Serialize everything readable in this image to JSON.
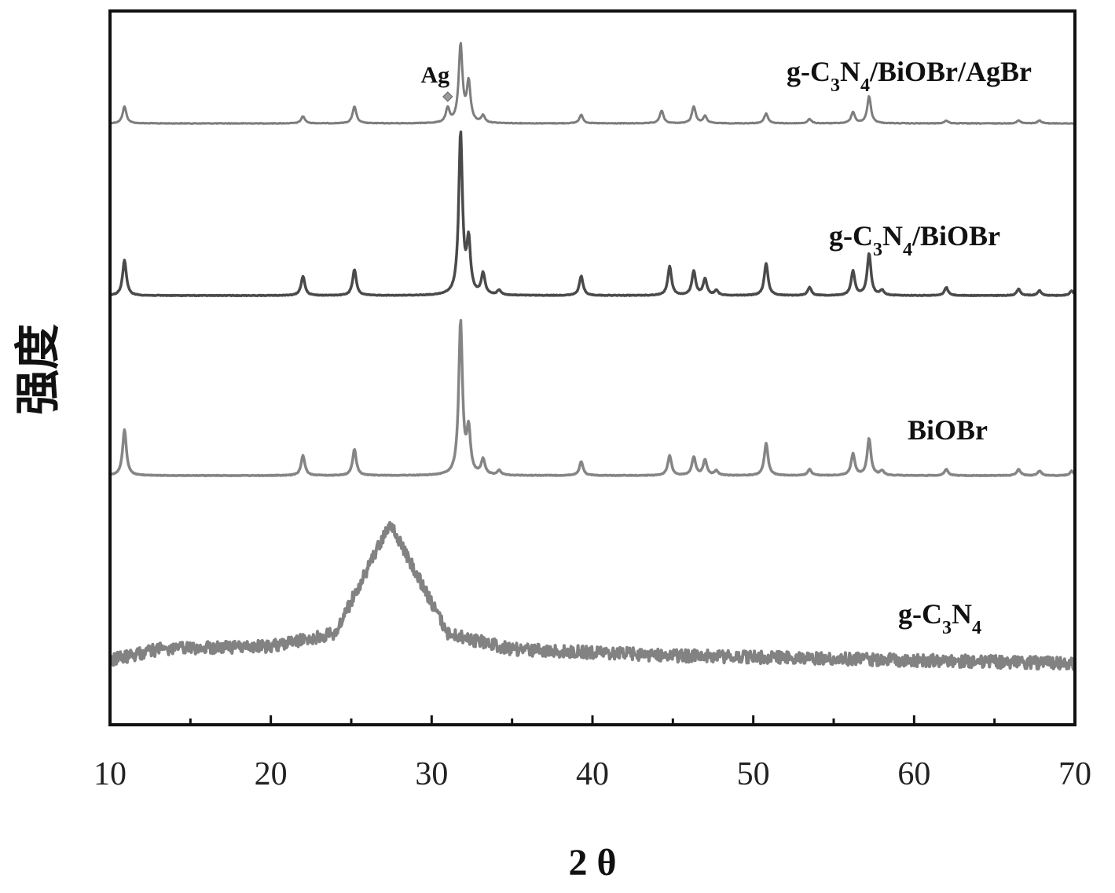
{
  "chart_data": {
    "type": "line",
    "title": "",
    "xlabel": "2 θ",
    "ylabel": "强度",
    "xlim": [
      10,
      70
    ],
    "x_ticks": [
      10,
      20,
      30,
      40,
      50,
      60,
      70
    ],
    "y_ticks": [],
    "grid": false,
    "legend": "none",
    "series": [
      {
        "name": "g-C₃N₄/BiOBr/AgBr",
        "label_parts": [
          "g-C",
          "3",
          "N",
          "4",
          "/BiOBr/AgBr"
        ],
        "color": "#7d7d7d",
        "peaks": [
          {
            "x": 10.9,
            "h": 0.12
          },
          {
            "x": 22.0,
            "h": 0.05
          },
          {
            "x": 25.2,
            "h": 0.12
          },
          {
            "x": 31.0,
            "h": 0.1
          },
          {
            "x": 31.8,
            "h": 0.55
          },
          {
            "x": 32.3,
            "h": 0.28
          },
          {
            "x": 33.2,
            "h": 0.05
          },
          {
            "x": 39.3,
            "h": 0.06
          },
          {
            "x": 44.3,
            "h": 0.09
          },
          {
            "x": 46.3,
            "h": 0.12
          },
          {
            "x": 47.0,
            "h": 0.05
          },
          {
            "x": 50.8,
            "h": 0.07
          },
          {
            "x": 53.5,
            "h": 0.03
          },
          {
            "x": 56.2,
            "h": 0.08
          },
          {
            "x": 57.2,
            "h": 0.19
          },
          {
            "x": 62.0,
            "h": 0.02
          },
          {
            "x": 66.5,
            "h": 0.02
          },
          {
            "x": 67.8,
            "h": 0.02
          }
        ]
      },
      {
        "name": "g-C₃N₄/BiOBr",
        "label_parts": [
          "g-C",
          "3",
          "N",
          "4",
          "/BiOBr"
        ],
        "color": "#4a4a4a",
        "peaks": [
          {
            "x": 10.9,
            "h": 0.22
          },
          {
            "x": 22.0,
            "h": 0.12
          },
          {
            "x": 25.2,
            "h": 0.16
          },
          {
            "x": 31.8,
            "h": 1.0
          },
          {
            "x": 32.3,
            "h": 0.32
          },
          {
            "x": 33.2,
            "h": 0.13
          },
          {
            "x": 34.2,
            "h": 0.03
          },
          {
            "x": 39.3,
            "h": 0.12
          },
          {
            "x": 44.8,
            "h": 0.18
          },
          {
            "x": 46.3,
            "h": 0.15
          },
          {
            "x": 47.0,
            "h": 0.1
          },
          {
            "x": 47.7,
            "h": 0.03
          },
          {
            "x": 50.8,
            "h": 0.2
          },
          {
            "x": 53.5,
            "h": 0.05
          },
          {
            "x": 56.2,
            "h": 0.15
          },
          {
            "x": 57.2,
            "h": 0.26
          },
          {
            "x": 58.0,
            "h": 0.03
          },
          {
            "x": 62.0,
            "h": 0.05
          },
          {
            "x": 66.5,
            "h": 0.04
          },
          {
            "x": 67.8,
            "h": 0.03
          },
          {
            "x": 69.8,
            "h": 0.03
          }
        ]
      },
      {
        "name": "BiOBr",
        "label_parts": [
          "BiOBr"
        ],
        "color": "#858585",
        "peaks": [
          {
            "x": 10.9,
            "h": 0.3
          },
          {
            "x": 22.0,
            "h": 0.13
          },
          {
            "x": 25.2,
            "h": 0.17
          },
          {
            "x": 31.8,
            "h": 1.0
          },
          {
            "x": 32.3,
            "h": 0.28
          },
          {
            "x": 33.2,
            "h": 0.1
          },
          {
            "x": 34.2,
            "h": 0.03
          },
          {
            "x": 39.3,
            "h": 0.09
          },
          {
            "x": 44.8,
            "h": 0.13
          },
          {
            "x": 46.3,
            "h": 0.12
          },
          {
            "x": 47.0,
            "h": 0.1
          },
          {
            "x": 47.7,
            "h": 0.03
          },
          {
            "x": 50.8,
            "h": 0.21
          },
          {
            "x": 53.5,
            "h": 0.04
          },
          {
            "x": 56.2,
            "h": 0.14
          },
          {
            "x": 57.2,
            "h": 0.24
          },
          {
            "x": 58.0,
            "h": 0.03
          },
          {
            "x": 62.0,
            "h": 0.04
          },
          {
            "x": 66.5,
            "h": 0.04
          },
          {
            "x": 67.8,
            "h": 0.03
          },
          {
            "x": 69.8,
            "h": 0.03
          }
        ]
      },
      {
        "name": "g-C₃N₄",
        "label_parts": [
          "g-C",
          "3",
          "N",
          "4"
        ],
        "color": "#828282",
        "broad_hump": {
          "x": 27.4,
          "h": 0.92
        },
        "background": {
          "x": [
            10,
            13,
            20,
            24,
            27.4,
            31,
            35,
            45,
            60,
            70
          ],
          "y": [
            0.05,
            0.12,
            0.14,
            0.22,
            0.92,
            0.22,
            0.12,
            0.08,
            0.05,
            0.03
          ]
        }
      }
    ],
    "annotations": [
      {
        "text": "Ag",
        "x": 31.0,
        "series": "g-C₃N₄/BiOBr/AgBr",
        "marker": "diamond"
      }
    ]
  }
}
